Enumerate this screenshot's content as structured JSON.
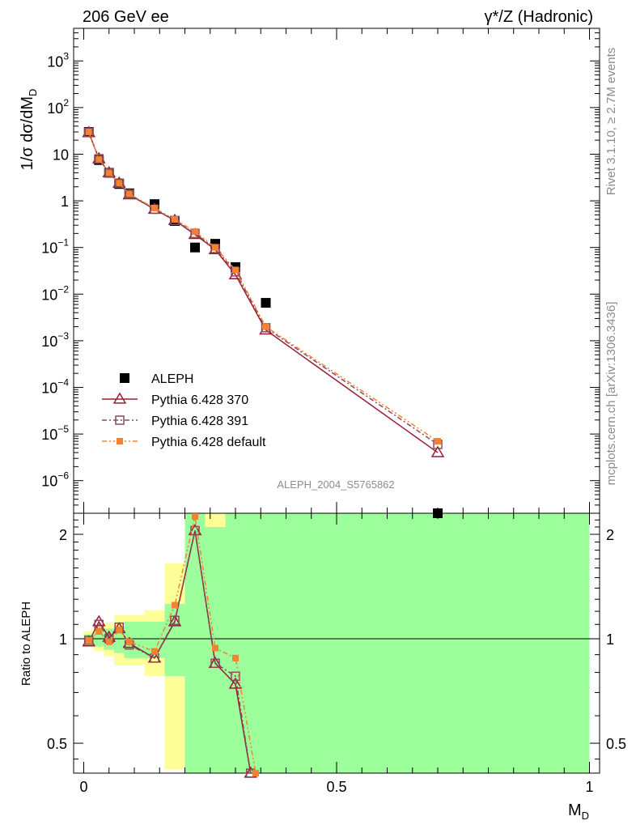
{
  "header": {
    "left": "206 GeV ee",
    "right": "γ*/Z (Hadronic)"
  },
  "side_text": {
    "rivet": "Rivet 3.1.10, ≥ 2.7M events",
    "mcplots": "mcplots.cern.ch [arXiv:1306.3436]"
  },
  "analysis_id": "ALEPH_2004_S5765862",
  "colors": {
    "data": "#000000",
    "p370": "#9b1b30",
    "p391": "#8a4a5e",
    "pdef": "#f58231",
    "band_inner": "#9cff9c",
    "band_outer": "#ffff99"
  },
  "chart_data": [
    {
      "type": "scatter",
      "panel": "main",
      "ylabel": "1/σ dσ/dM_D",
      "yscale": "log",
      "ylim": [
        2e-07,
        5000
      ],
      "xlim": [
        -0.02,
        1.02
      ],
      "ytick_labels": [
        "10^-6",
        "10^-5",
        "10^-4",
        "10^-3",
        "10^-2",
        "10^-1",
        "1",
        "10",
        "10^2",
        "10^3"
      ],
      "legend_position": "lower-left",
      "series": [
        {
          "name": "ALEPH",
          "marker": "filled-square",
          "x": [
            0.01,
            0.03,
            0.05,
            0.07,
            0.09,
            0.14,
            0.18,
            0.22,
            0.26,
            0.3,
            0.36,
            0.7
          ],
          "y": [
            30,
            7.5,
            4.0,
            2.3,
            1.45,
            0.85,
            0.37,
            0.1,
            0.12,
            0.038,
            0.0065,
            2e-07
          ]
        },
        {
          "name": "Pythia 6.428 370",
          "marker": "open-triangle",
          "line": "solid",
          "x": [
            0.01,
            0.03,
            0.05,
            0.07,
            0.09,
            0.14,
            0.18,
            0.22,
            0.26,
            0.3,
            0.36,
            0.7
          ],
          "y": [
            29,
            8.0,
            4.0,
            2.4,
            1.35,
            0.66,
            0.38,
            0.19,
            0.09,
            0.026,
            0.0017,
            4e-06
          ]
        },
        {
          "name": "Pythia 6.428 391",
          "marker": "open-square",
          "line": "dash-dot",
          "x": [
            0.01,
            0.03,
            0.05,
            0.07,
            0.09,
            0.14,
            0.18,
            0.22,
            0.26,
            0.3,
            0.36,
            0.7
          ],
          "y": [
            29.5,
            8.0,
            4.0,
            2.4,
            1.4,
            0.66,
            0.38,
            0.2,
            0.095,
            0.03,
            0.0019,
            6e-06
          ]
        },
        {
          "name": "Pythia 6.428 default",
          "marker": "filled-small-square",
          "line": "dash-dot-dot",
          "x": [
            0.01,
            0.03,
            0.05,
            0.07,
            0.09,
            0.14,
            0.18,
            0.22,
            0.26,
            0.3,
            0.36,
            0.7
          ],
          "y": [
            30,
            7.8,
            4.0,
            2.4,
            1.4,
            0.7,
            0.4,
            0.22,
            0.1,
            0.033,
            0.002,
            7e-06
          ]
        }
      ]
    },
    {
      "type": "line",
      "panel": "ratio",
      "ylabel": "Ratio to ALEPH",
      "xlabel": "M_D",
      "yscale": "log",
      "ylim": [
        0.41,
        2.3
      ],
      "xlim": [
        -0.02,
        1.02
      ],
      "x_ticks": [
        0,
        0.5,
        1
      ],
      "x_tick_labels": [
        "0",
        "0.5",
        "1"
      ],
      "y_ticks": [
        0.5,
        1,
        2
      ],
      "y_tick_labels": [
        "0.5",
        "1",
        "2"
      ],
      "reference_line": 1,
      "bands": [
        {
          "x": [
            0.0,
            0.02
          ],
          "inner": [
            0.97,
            1.03
          ],
          "outer": [
            0.95,
            1.05
          ]
        },
        {
          "x": [
            0.02,
            0.04
          ],
          "inner": [
            0.95,
            1.05
          ],
          "outer": [
            0.92,
            1.08
          ]
        },
        {
          "x": [
            0.04,
            0.06
          ],
          "inner": [
            0.93,
            1.07
          ],
          "outer": [
            0.89,
            1.11
          ]
        },
        {
          "x": [
            0.06,
            0.08
          ],
          "inner": [
            0.91,
            1.09
          ],
          "outer": [
            0.84,
            1.17
          ]
        },
        {
          "x": [
            0.08,
            0.12
          ],
          "inner": [
            0.88,
            1.12
          ],
          "outer": [
            0.84,
            1.17
          ]
        },
        {
          "x": [
            0.12,
            0.16
          ],
          "inner": [
            0.88,
            1.12
          ],
          "outer": [
            0.78,
            1.21
          ]
        },
        {
          "x": [
            0.16,
            0.2
          ],
          "inner": [
            0.78,
            1.26
          ],
          "outer": [
            0.42,
            1.65
          ]
        },
        {
          "x": [
            0.2,
            0.24
          ],
          "inner": [
            0.41,
            2.3
          ],
          "outer": [
            0.41,
            2.3
          ]
        },
        {
          "x": [
            0.24,
            0.28
          ],
          "inner": [
            0.41,
            2.1
          ],
          "outer": [
            0.41,
            2.3
          ]
        },
        {
          "x": [
            0.28,
            0.32
          ],
          "inner": [
            0.41,
            2.3
          ],
          "outer": [
            0.41,
            2.3
          ]
        },
        {
          "x": [
            0.32,
            1.0
          ],
          "inner": [
            0.41,
            2.3
          ],
          "outer": [
            0.41,
            2.3
          ]
        }
      ],
      "series": [
        {
          "name": "Pythia 6.428 370",
          "x": [
            0.01,
            0.03,
            0.05,
            0.07,
            0.09,
            0.14,
            0.18,
            0.22,
            0.26,
            0.3,
            0.33
          ],
          "y": [
            0.98,
            1.12,
            1.01,
            1.07,
            0.97,
            0.88,
            1.12,
            2.05,
            0.85,
            0.74,
            0.41
          ]
        },
        {
          "name": "Pythia 6.428 391",
          "x": [
            0.01,
            0.03,
            0.05,
            0.07,
            0.09,
            0.14,
            0.18,
            0.22,
            0.26,
            0.3,
            0.33
          ],
          "y": [
            0.99,
            1.1,
            1.0,
            1.08,
            0.96,
            0.88,
            1.13,
            2.05,
            0.85,
            0.78,
            0.41
          ]
        },
        {
          "name": "Pythia 6.428 default",
          "x": [
            0.01,
            0.03,
            0.05,
            0.07,
            0.09,
            0.14,
            0.18,
            0.22,
            0.26,
            0.3,
            0.34
          ],
          "y": [
            0.99,
            1.05,
            0.98,
            1.06,
            0.98,
            0.92,
            1.25,
            2.25,
            0.94,
            0.88,
            0.41
          ]
        }
      ]
    }
  ]
}
